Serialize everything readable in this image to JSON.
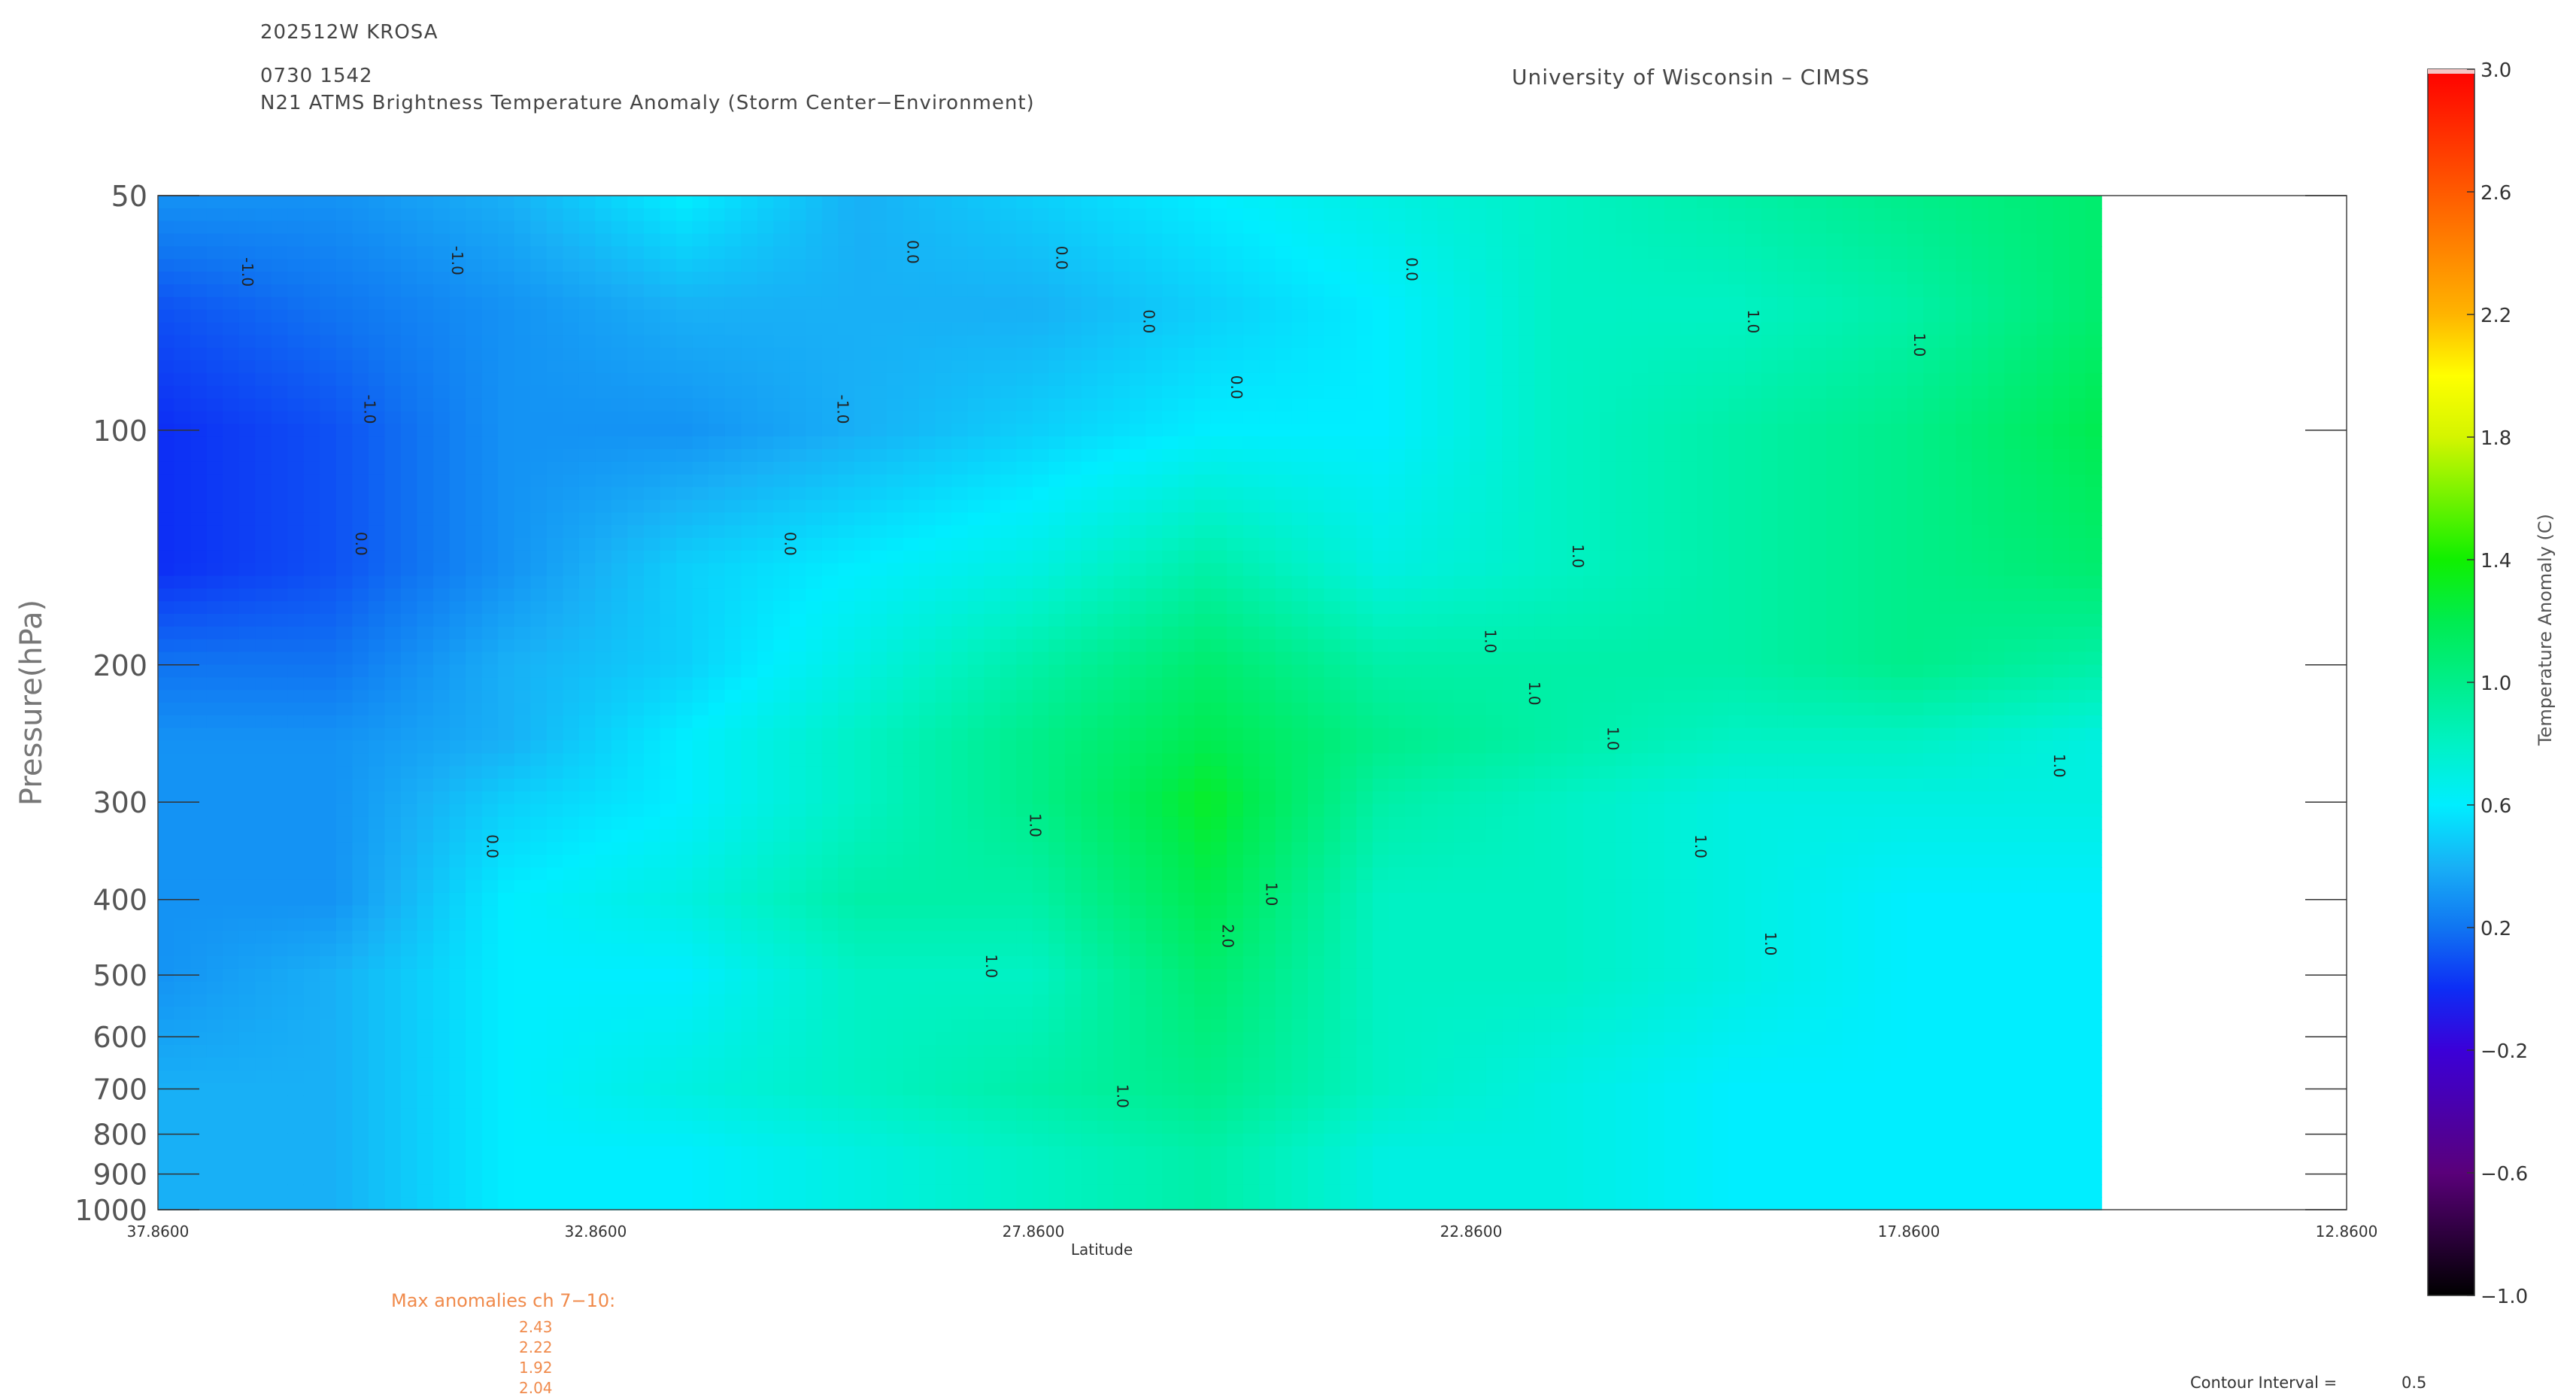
{
  "header": {
    "storm_id": "202512W KROSA",
    "date_time": "0730 1542",
    "product": "N21 ATMS Brightness Temperature Anomaly (Storm Center−Environment)",
    "institution": "University of Wisconsin – CIMSS"
  },
  "max_anomalies": {
    "title": "Max anomalies ch 7−10:",
    "values": [
      "2.43",
      "2.22",
      "1.92",
      "2.04"
    ]
  },
  "contour_interval": {
    "label": "Contour Interval =",
    "value": "0.5"
  },
  "chart_data": {
    "type": "heatmap",
    "xlabel": "Latitude",
    "ylabel": "Pressure(hPa)",
    "x_ticks": [
      "37.8600",
      "32.8600",
      "27.8600",
      "22.8600",
      "17.8600",
      "12.8600"
    ],
    "x_tick_values": [
      37.86,
      32.86,
      27.86,
      22.86,
      17.86,
      12.86
    ],
    "xlim": [
      37.86,
      12.86
    ],
    "x_data_range": [
      37.86,
      15.66
    ],
    "y_ticks": [
      "50",
      "100",
      "200",
      "300",
      "400",
      "500",
      "600",
      "700",
      "800",
      "900",
      "1000"
    ],
    "y_tick_values": [
      50,
      100,
      200,
      300,
      400,
      500,
      600,
      700,
      800,
      900,
      1000
    ],
    "ylim": [
      1000,
      50
    ],
    "y_scale": "log",
    "contour_labels": [
      "-1.0",
      "0.0",
      "1.0",
      "2.0"
    ],
    "colorbar": {
      "label": "Temperature Anomaly (C)",
      "ticks": [
        "3.0",
        "2.6",
        "2.2",
        "1.8",
        "1.4",
        "1.0",
        "0.6",
        "0.2",
        "−0.2",
        "−0.6",
        "−1.0"
      ],
      "tick_values": [
        3.0,
        2.6,
        2.2,
        1.8,
        1.4,
        1.0,
        0.6,
        0.2,
        -0.2,
        -0.6,
        -1.0
      ],
      "range": [
        -1.0,
        3.0
      ]
    },
    "color_levels": [
      {
        "value": -1.0,
        "color": "#000000"
      },
      {
        "value": -0.6,
        "color": "#5a007a"
      },
      {
        "value": -0.2,
        "color": "#3b00d8"
      },
      {
        "value": 0.0,
        "color": "#0d2df5"
      },
      {
        "value": 0.2,
        "color": "#1075f2"
      },
      {
        "value": 0.4,
        "color": "#18b0f6"
      },
      {
        "value": 0.6,
        "color": "#00eeff"
      },
      {
        "value": 0.8,
        "color": "#00f2c4"
      },
      {
        "value": 1.0,
        "color": "#00ee8a"
      },
      {
        "value": 1.2,
        "color": "#00ec50"
      },
      {
        "value": 1.4,
        "color": "#10f000"
      },
      {
        "value": 1.8,
        "color": "#d4f500"
      },
      {
        "value": 2.0,
        "color": "#ffff00"
      },
      {
        "value": 2.2,
        "color": "#ffb400"
      },
      {
        "value": 2.6,
        "color": "#ff5a00"
      },
      {
        "value": 3.0,
        "color": "#ff0000"
      }
    ],
    "levels_hpa": [
      50,
      70,
      100,
      150,
      200,
      250,
      300,
      400,
      500,
      700,
      850,
      1000
    ],
    "latitudes": [
      37.86,
      35.86,
      33.86,
      31.86,
      29.86,
      27.86,
      25.86,
      23.86,
      21.86,
      19.86,
      17.86,
      15.66
    ],
    "values": [
      [
        0.3,
        0.3,
        0.4,
        0.6,
        0.4,
        0.5,
        0.6,
        0.7,
        0.8,
        0.9,
        1.0,
        1.1
      ],
      [
        0.1,
        0.2,
        0.3,
        0.4,
        0.4,
        0.4,
        0.5,
        0.6,
        0.8,
        0.8,
        0.9,
        1.1
      ],
      [
        0.0,
        0.1,
        0.3,
        0.3,
        0.4,
        0.5,
        0.6,
        0.6,
        0.8,
        0.9,
        1.0,
        1.2
      ],
      [
        0.0,
        0.1,
        0.3,
        0.5,
        0.6,
        0.7,
        0.9,
        0.7,
        0.8,
        0.9,
        1.0,
        1.1
      ],
      [
        0.2,
        0.2,
        0.4,
        0.5,
        0.7,
        0.9,
        1.1,
        0.9,
        0.9,
        0.9,
        1.0,
        0.9
      ],
      [
        0.3,
        0.3,
        0.4,
        0.6,
        0.8,
        1.0,
        1.2,
        1.0,
        0.9,
        0.8,
        0.8,
        0.7
      ],
      [
        0.3,
        0.3,
        0.5,
        0.6,
        0.8,
        1.0,
        1.3,
        0.9,
        0.8,
        0.7,
        0.7,
        0.7
      ],
      [
        0.3,
        0.3,
        0.6,
        0.7,
        0.9,
        0.9,
        1.2,
        0.8,
        0.8,
        0.7,
        0.6,
        0.6
      ],
      [
        0.3,
        0.4,
        0.6,
        0.6,
        0.8,
        0.8,
        1.1,
        0.8,
        0.8,
        0.7,
        0.6,
        0.6
      ],
      [
        0.4,
        0.4,
        0.6,
        0.7,
        0.8,
        0.9,
        1.0,
        0.8,
        0.7,
        0.6,
        0.6,
        0.6
      ],
      [
        0.4,
        0.4,
        0.6,
        0.6,
        0.7,
        0.8,
        0.9,
        0.7,
        0.7,
        0.6,
        0.6,
        0.6
      ],
      [
        0.4,
        0.4,
        0.6,
        0.6,
        0.7,
        0.8,
        0.9,
        0.7,
        0.7,
        0.6,
        0.6,
        0.6
      ]
    ]
  }
}
